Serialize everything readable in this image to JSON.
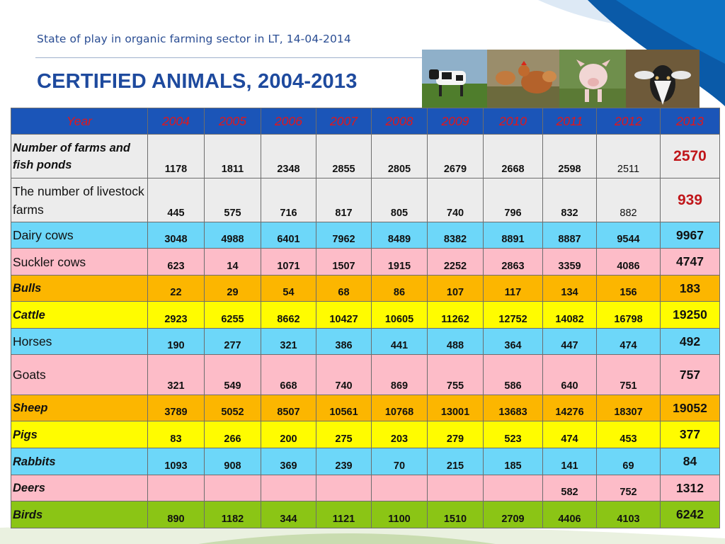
{
  "header": {
    "subtitle": "State of play in organic farming sector in LT, 14-04-2014",
    "title": "CERTIFIED ANIMALS, 2004-2013"
  },
  "photos": [
    {
      "icon": "cow-photo"
    },
    {
      "icon": "hen-photo"
    },
    {
      "icon": "pig-photo"
    },
    {
      "icon": "goat-photo"
    }
  ],
  "table": {
    "header_label": "Year",
    "years": [
      "2004",
      "2005",
      "2006",
      "2007",
      "2008",
      "2009",
      "2010",
      "2011",
      "2012",
      "2013"
    ],
    "rows": [
      {
        "label": "Number of  farms and fish ponds",
        "values": [
          "1178",
          "1811",
          "2348",
          "2855",
          "2805",
          "2679",
          "2668",
          "2598",
          "2511",
          "2570"
        ],
        "color": "#ececec"
      },
      {
        "label": "The number of livestock farms",
        "values": [
          "445",
          "575",
          "716",
          "817",
          "805",
          "740",
          "796",
          "832",
          "882",
          "939"
        ],
        "color": "#ececec"
      },
      {
        "label": "Dairy cows",
        "values": [
          "3048",
          "4988",
          "6401",
          "7962",
          "8489",
          "8382",
          "8891",
          "8887",
          "9544",
          "9967"
        ],
        "color": "#6dd7f9"
      },
      {
        "label": "Suckler cows",
        "values": [
          "623",
          "14",
          "1071",
          "1507",
          "1915",
          "2252",
          "2863",
          "3359",
          "4086",
          "4747"
        ],
        "color": "#fdbcc8"
      },
      {
        "label": "Bulls",
        "values": [
          "22",
          "29",
          "54",
          "68",
          "86",
          "107",
          "117",
          "134",
          "156",
          "183"
        ],
        "color": "#fcb600"
      },
      {
        "label": "Cattle",
        "values": [
          "2923",
          "6255",
          "8662",
          "10427",
          "10605",
          "11262",
          "12752",
          "14082",
          "16798",
          "19250"
        ],
        "color": "#fffc00"
      },
      {
        "label": "Horses",
        "values": [
          "190",
          "277",
          "321",
          "386",
          "441",
          "488",
          "364",
          "447",
          "474",
          "492"
        ],
        "color": "#6dd7f9"
      },
      {
        "label": "Goats",
        "values": [
          "321",
          "549",
          "668",
          "740",
          "869",
          "755",
          "586",
          "640",
          "751",
          "757"
        ],
        "color": "#fdbcc8"
      },
      {
        "label": "Sheep",
        "values": [
          "3789",
          "5052",
          "8507",
          "10561",
          "10768",
          "13001",
          "13683",
          "14276",
          "18307",
          "19052"
        ],
        "color": "#fcb600"
      },
      {
        "label": "Pigs",
        "values": [
          "83",
          "266",
          "200",
          "275",
          "203",
          "279",
          "523",
          "474",
          "453",
          "377"
        ],
        "color": "#fffc00"
      },
      {
        "label": "Rabbits",
        "values": [
          "1093",
          "908",
          "369",
          "239",
          "70",
          "215",
          "185",
          "141",
          "69",
          "84"
        ],
        "color": "#6dd7f9"
      },
      {
        "label": "Deers",
        "values": [
          "",
          "",
          "",
          "",
          "",
          "",
          "",
          "582",
          "752",
          "1312"
        ],
        "color": "#fdbcc8"
      },
      {
        "label": "Birds",
        "values": [
          "890",
          "1182",
          "344",
          "1121",
          "1100",
          "1510",
          "2709",
          "4406",
          "4103",
          "6242"
        ],
        "color": "#8bc515"
      }
    ]
  },
  "colors": {
    "header_bg": "#1b55b8",
    "header_text": "#e3161a",
    "title_blue": "#1e4a9e",
    "highlight_red": "#c0161a"
  }
}
